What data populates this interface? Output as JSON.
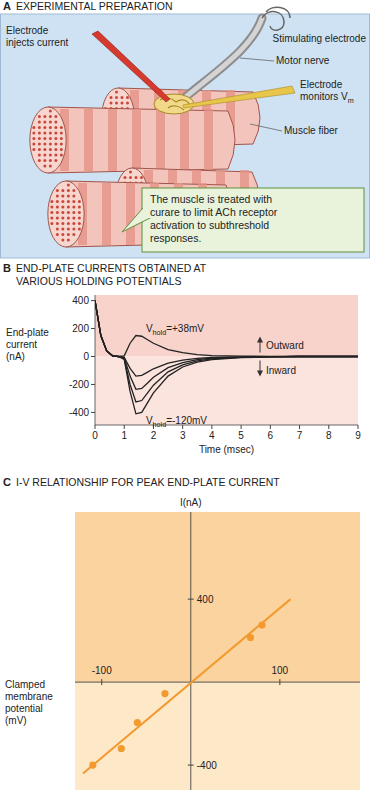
{
  "panel_a": {
    "panel_label": "A",
    "title": "EXPERIMENTAL PREPARATION",
    "labels": {
      "injecting_electrode": "Electrode injects current",
      "stimulating_electrode": "Stimulating electrode",
      "nerve": "Motor nerve",
      "recording_electrode": "Electrode monitors Vm",
      "fiber": "Muscle fiber"
    },
    "callout": "The muscle is treated with curare to limit ACh receptor activation to subthreshold responses."
  },
  "chart_data": [
    {
      "type": "line",
      "panel_label": "B",
      "title": "END-PLATE CURRENTS OBTAINED AT VARIOUS HOLDING POTENTIALS",
      "x_label": "Time (msec)",
      "y_label": "End-plate current (nA)",
      "annotations": [
        "Outward",
        "Inward"
      ],
      "x": [
        0,
        0.2,
        0.4,
        0.6,
        0.8,
        1,
        1.2,
        1.4,
        1.6,
        1.8,
        2,
        2.5,
        3,
        3.5,
        4,
        5,
        6,
        7,
        8,
        9
      ],
      "series": [
        {
          "name": "Vhold=+38mV",
          "color": "#222222",
          "values": [
            400,
            150,
            40,
            5,
            0,
            5,
            95,
            150,
            145,
            120,
            95,
            50,
            27,
            14,
            7,
            3,
            1,
            0,
            0,
            0
          ]
        },
        {
          "color": "#222222",
          "values": [
            400,
            150,
            40,
            5,
            0,
            -6,
            -85,
            -140,
            -135,
            -112,
            -88,
            -48,
            -26,
            -14,
            -7,
            -3,
            -1,
            0,
            0,
            0
          ]
        },
        {
          "color": "#222222",
          "values": [
            400,
            150,
            40,
            5,
            0,
            -10,
            -140,
            -235,
            -228,
            -190,
            -148,
            -80,
            -43,
            -23,
            -12,
            -5,
            -2,
            0,
            0,
            0
          ]
        },
        {
          "color": "#222222",
          "values": [
            400,
            150,
            40,
            5,
            0,
            -15,
            -200,
            -325,
            -315,
            -260,
            -205,
            -110,
            -60,
            -32,
            -17,
            -6,
            -2,
            0,
            0,
            0
          ]
        },
        {
          "name": "Vhold=-120mV",
          "color": "#222222",
          "values": [
            400,
            150,
            40,
            5,
            0,
            -20,
            -250,
            -410,
            -400,
            -330,
            -260,
            -140,
            -75,
            -40,
            -22,
            -8,
            -3,
            0,
            0,
            0
          ]
        }
      ],
      "xlim": [
        0,
        9
      ],
      "ylim": [
        -490,
        440
      ],
      "xticks": [
        0,
        1,
        2,
        3,
        4,
        5,
        6,
        7,
        8,
        9
      ],
      "yticks": [
        -400,
        -200,
        0,
        200,
        400
      ]
    },
    {
      "type": "scatter",
      "panel_label": "C",
      "title": "I-V RELATIONSHIP FOR PEAK END-PLATE CURRENT",
      "x_label": "Clamped membrane potential (mV)",
      "y_label": "I(nA)",
      "series": [
        {
          "type": "scatter",
          "marker": "circle",
          "color": "#f29a2e",
          "x": [
            -110,
            -78,
            -60,
            -29,
            67,
            80
          ],
          "values": [
            -400,
            -320,
            -195,
            -55,
            215,
            275
          ]
        },
        {
          "type": "line",
          "color": "#f29a2e",
          "x": [
            -121,
            112
          ],
          "values": [
            -440,
            400
          ]
        }
      ],
      "xlim": [
        -130,
        190
      ],
      "ylim": [
        -520,
        820
      ],
      "xticks": [
        -100,
        100
      ],
      "yticks": [
        -400,
        400
      ]
    }
  ]
}
